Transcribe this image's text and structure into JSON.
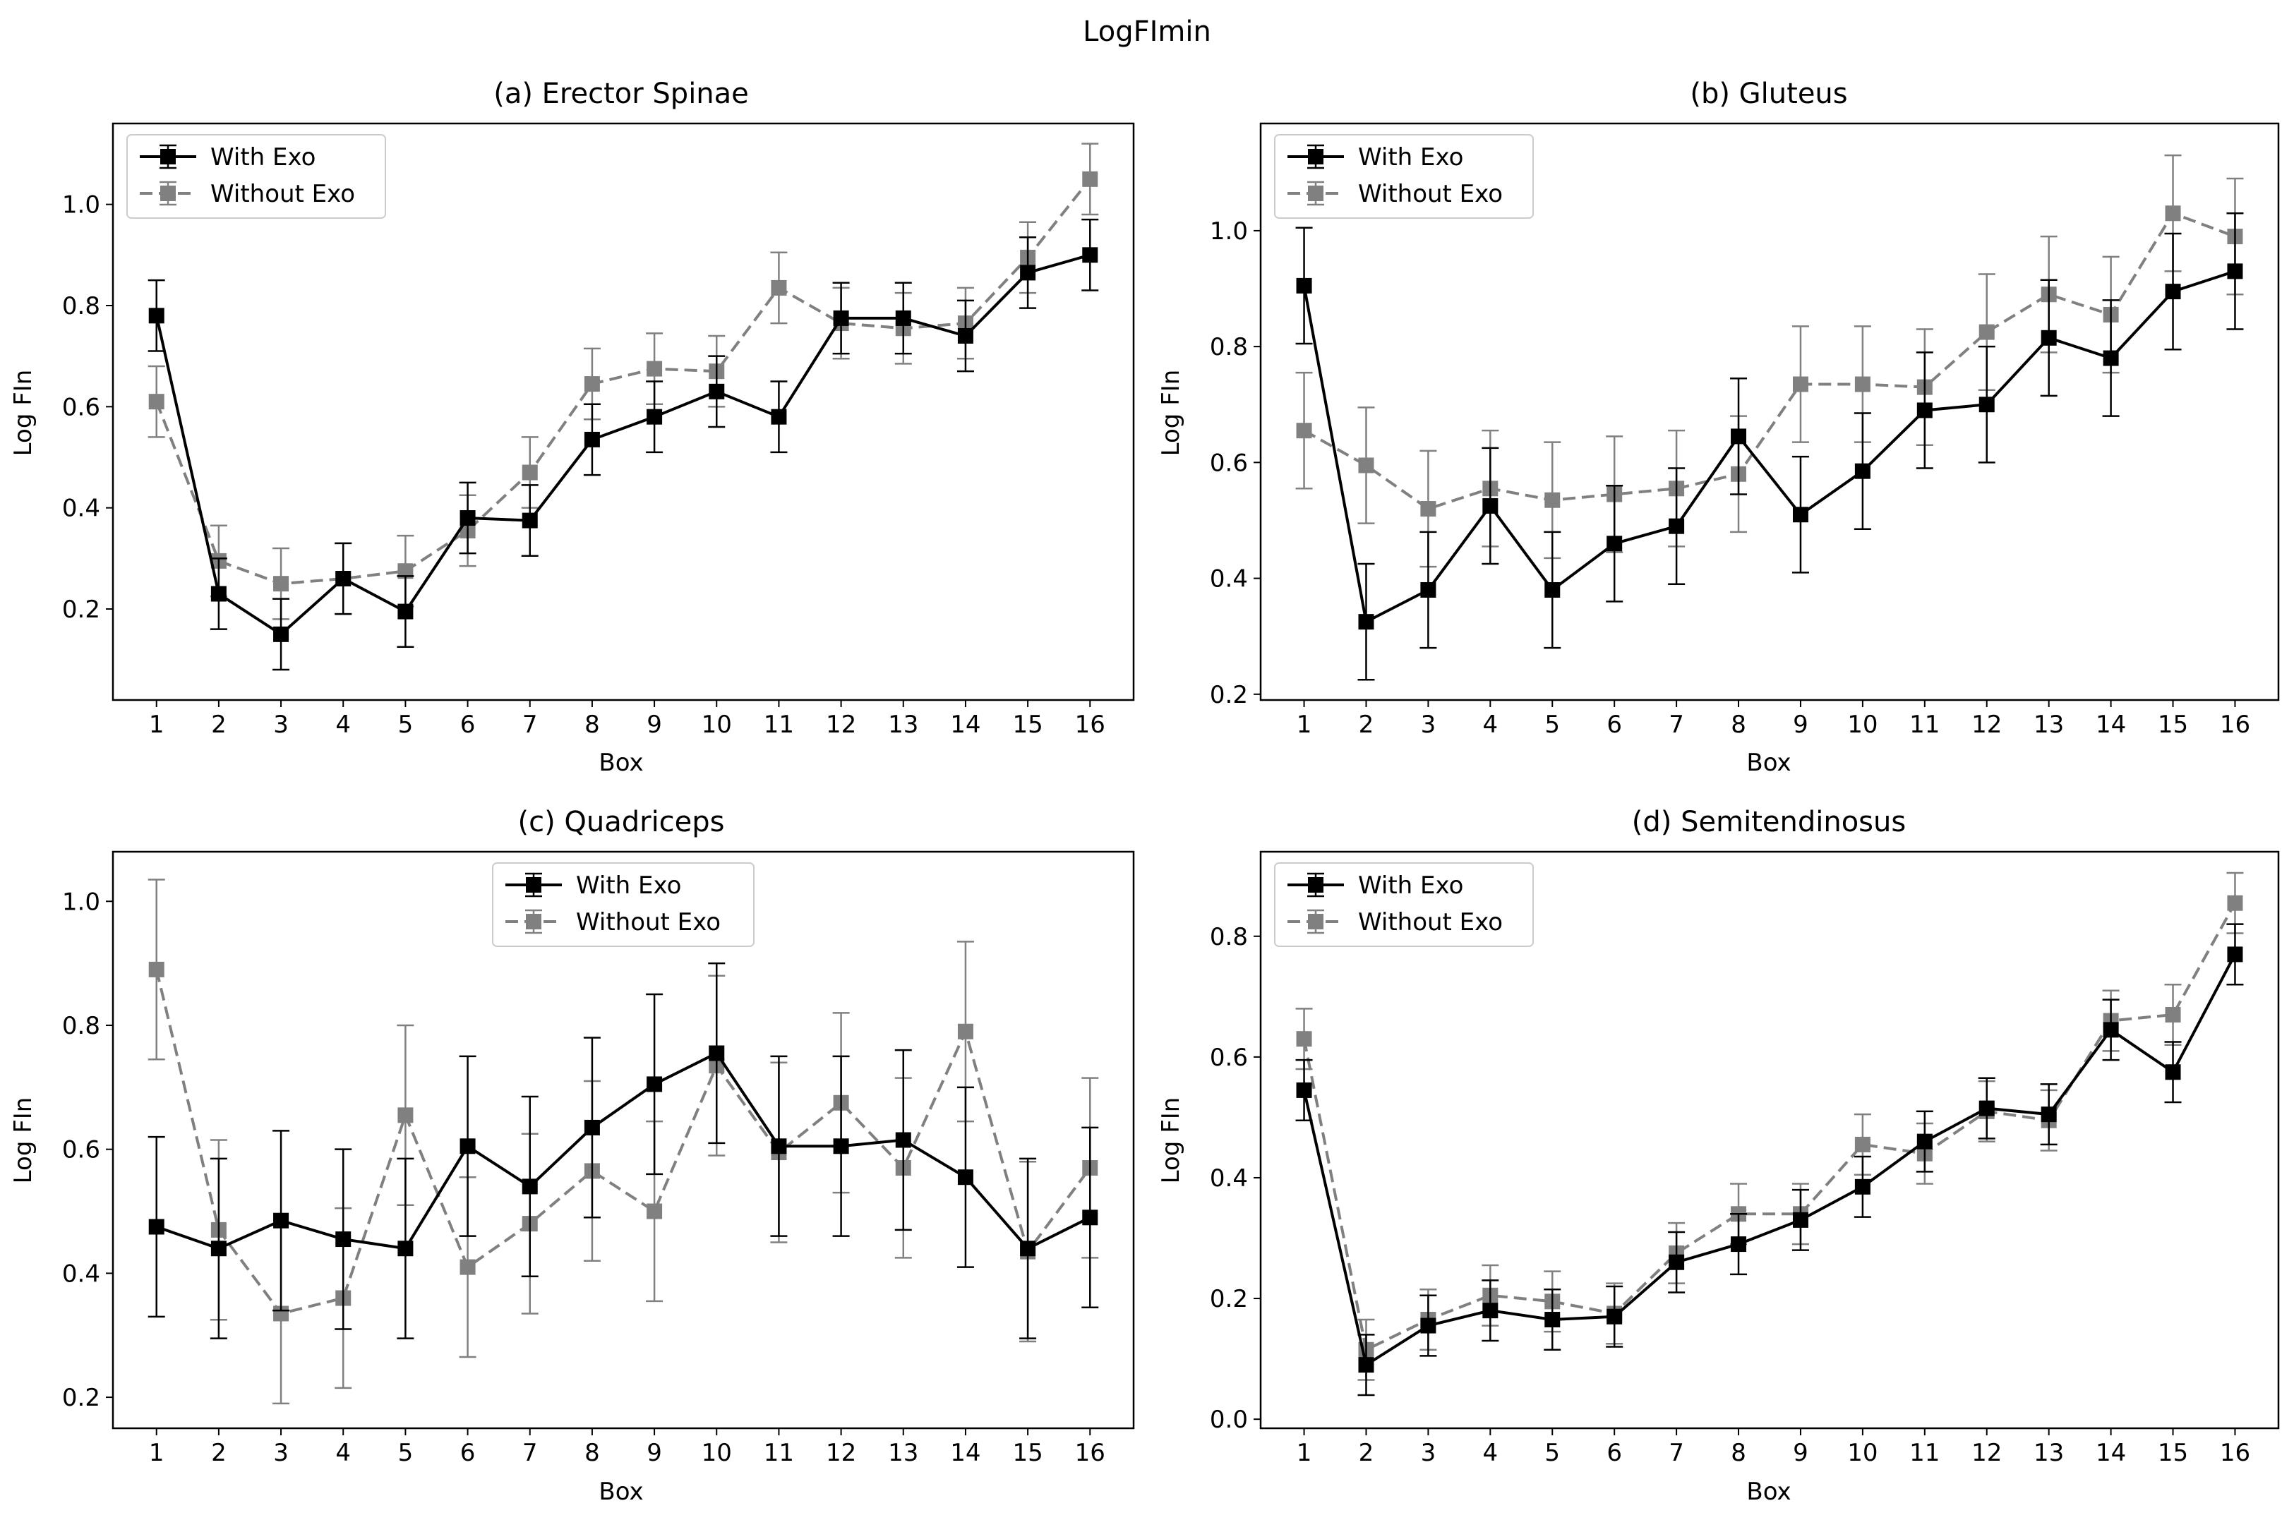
{
  "figure": {
    "title": "LogFImin"
  },
  "colors": {
    "with_exo": "#000000",
    "without_exo": "#808080"
  },
  "chart_data": [
    {
      "type": "line",
      "title": "(a)  Erector Spinae",
      "xlabel": "Box",
      "ylabel": "Log FIn",
      "x": [
        1,
        2,
        3,
        4,
        5,
        6,
        7,
        8,
        9,
        10,
        11,
        12,
        13,
        14,
        15,
        16
      ],
      "xlim": [
        0.3,
        16.7
      ],
      "ylim": [
        0.02,
        1.16
      ],
      "yticks": [
        0.2,
        0.4,
        0.6,
        0.8,
        1.0
      ],
      "legend": "upper-left",
      "series": [
        {
          "name": "With Exo",
          "style": "solid",
          "color": "#000000",
          "values": [
            0.78,
            0.23,
            0.15,
            0.26,
            0.195,
            0.38,
            0.375,
            0.535,
            0.58,
            0.63,
            0.58,
            0.775,
            0.775,
            0.74,
            0.865,
            0.9
          ],
          "errors": [
            0.07,
            0.07,
            0.07,
            0.07,
            0.07,
            0.07,
            0.07,
            0.07,
            0.07,
            0.07,
            0.07,
            0.07,
            0.07,
            0.07,
            0.07,
            0.07
          ]
        },
        {
          "name": "Without Exo",
          "style": "dashed",
          "color": "#808080",
          "values": [
            0.61,
            0.295,
            0.25,
            0.26,
            0.275,
            0.355,
            0.47,
            0.645,
            0.675,
            0.67,
            0.835,
            0.765,
            0.755,
            0.765,
            0.895,
            1.05
          ],
          "errors": [
            0.07,
            0.07,
            0.07,
            0.07,
            0.07,
            0.07,
            0.07,
            0.07,
            0.07,
            0.07,
            0.07,
            0.07,
            0.07,
            0.07,
            0.07,
            0.07
          ]
        }
      ]
    },
    {
      "type": "line",
      "title": "(b)  Gluteus",
      "xlabel": "Box",
      "ylabel": "Log FIn",
      "x": [
        1,
        2,
        3,
        4,
        5,
        6,
        7,
        8,
        9,
        10,
        11,
        12,
        13,
        14,
        15,
        16
      ],
      "xlim": [
        0.3,
        16.7
      ],
      "ylim": [
        0.19,
        1.185
      ],
      "yticks": [
        0.2,
        0.4,
        0.6,
        0.8,
        1.0
      ],
      "legend": "upper-left",
      "series": [
        {
          "name": "With Exo",
          "style": "solid",
          "color": "#000000",
          "values": [
            0.905,
            0.325,
            0.38,
            0.525,
            0.38,
            0.46,
            0.49,
            0.645,
            0.51,
            0.585,
            0.69,
            0.7,
            0.815,
            0.78,
            0.895,
            0.93
          ],
          "errors": [
            0.1,
            0.1,
            0.1,
            0.1,
            0.1,
            0.1,
            0.1,
            0.1,
            0.1,
            0.1,
            0.1,
            0.1,
            0.1,
            0.1,
            0.1,
            0.1
          ]
        },
        {
          "name": "Without Exo",
          "style": "dashed",
          "color": "#808080",
          "values": [
            0.655,
            0.595,
            0.52,
            0.555,
            0.535,
            0.545,
            0.555,
            0.58,
            0.735,
            0.735,
            0.73,
            0.825,
            0.89,
            0.855,
            1.03,
            0.99
          ],
          "errors": [
            0.1,
            0.1,
            0.1,
            0.1,
            0.1,
            0.1,
            0.1,
            0.1,
            0.1,
            0.1,
            0.1,
            0.1,
            0.1,
            0.1,
            0.1,
            0.1
          ]
        }
      ]
    },
    {
      "type": "line",
      "title": "(c)  Quadriceps",
      "xlabel": "Box",
      "ylabel": "Log FIn",
      "x": [
        1,
        2,
        3,
        4,
        5,
        6,
        7,
        8,
        9,
        10,
        11,
        12,
        13,
        14,
        15,
        16
      ],
      "xlim": [
        0.3,
        16.7
      ],
      "ylim": [
        0.15,
        1.08
      ],
      "yticks": [
        0.2,
        0.4,
        0.6,
        0.8,
        1.0
      ],
      "legend": "upper-center",
      "series": [
        {
          "name": "With Exo",
          "style": "solid",
          "color": "#000000",
          "values": [
            0.475,
            0.44,
            0.485,
            0.455,
            0.44,
            0.605,
            0.54,
            0.635,
            0.705,
            0.755,
            0.605,
            0.605,
            0.615,
            0.555,
            0.44,
            0.49
          ],
          "errors": [
            0.145,
            0.145,
            0.145,
            0.145,
            0.145,
            0.145,
            0.145,
            0.145,
            0.145,
            0.145,
            0.145,
            0.145,
            0.145,
            0.145,
            0.145,
            0.145
          ]
        },
        {
          "name": "Without Exo",
          "style": "dashed",
          "color": "#808080",
          "values": [
            0.89,
            0.47,
            0.335,
            0.36,
            0.655,
            0.41,
            0.48,
            0.565,
            0.5,
            0.735,
            0.595,
            0.675,
            0.57,
            0.79,
            0.435,
            0.57
          ],
          "errors": [
            0.145,
            0.145,
            0.145,
            0.145,
            0.145,
            0.145,
            0.145,
            0.145,
            0.145,
            0.145,
            0.145,
            0.145,
            0.145,
            0.145,
            0.145,
            0.145
          ]
        }
      ]
    },
    {
      "type": "line",
      "title": "(d)  Semitendinosus",
      "xlabel": "Box",
      "ylabel": "Log FIn",
      "x": [
        1,
        2,
        3,
        4,
        5,
        6,
        7,
        8,
        9,
        10,
        11,
        12,
        13,
        14,
        15,
        16
      ],
      "xlim": [
        0.3,
        16.7
      ],
      "ylim": [
        -0.015,
        0.94
      ],
      "yticks": [
        0.0,
        0.2,
        0.4,
        0.6,
        0.8
      ],
      "legend": "upper-left",
      "series": [
        {
          "name": "With Exo",
          "style": "solid",
          "color": "#000000",
          "values": [
            0.545,
            0.09,
            0.155,
            0.18,
            0.165,
            0.17,
            0.26,
            0.29,
            0.33,
            0.385,
            0.46,
            0.515,
            0.505,
            0.645,
            0.575,
            0.77
          ],
          "errors": [
            0.05,
            0.05,
            0.05,
            0.05,
            0.05,
            0.05,
            0.05,
            0.05,
            0.05,
            0.05,
            0.05,
            0.05,
            0.05,
            0.05,
            0.05,
            0.05
          ]
        },
        {
          "name": "Without Exo",
          "style": "dashed",
          "color": "#808080",
          "values": [
            0.63,
            0.115,
            0.165,
            0.205,
            0.195,
            0.175,
            0.275,
            0.34,
            0.34,
            0.455,
            0.44,
            0.51,
            0.495,
            0.66,
            0.67,
            0.855
          ],
          "errors": [
            0.05,
            0.05,
            0.05,
            0.05,
            0.05,
            0.05,
            0.05,
            0.05,
            0.05,
            0.05,
            0.05,
            0.05,
            0.05,
            0.05,
            0.05,
            0.05
          ]
        }
      ]
    }
  ]
}
